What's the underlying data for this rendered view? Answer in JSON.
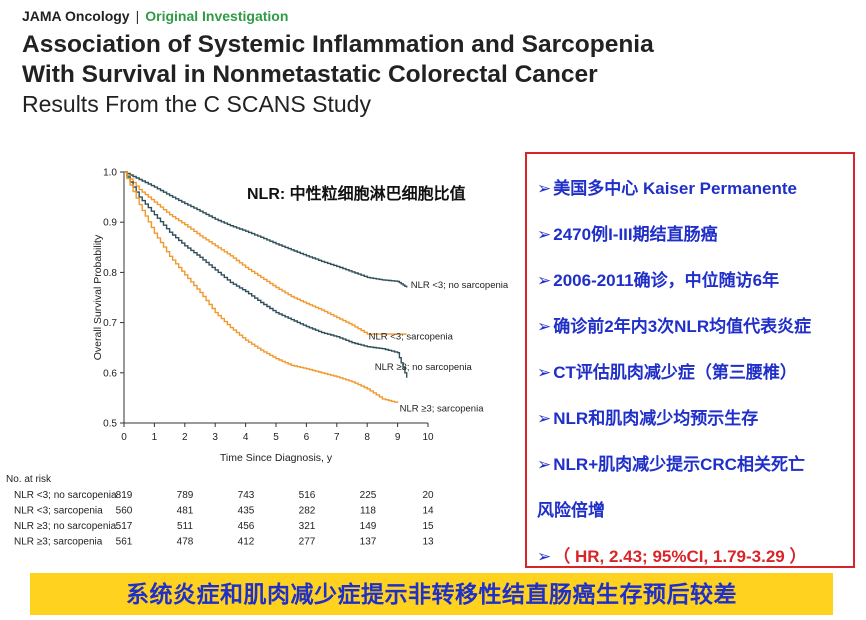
{
  "header": {
    "journal": "JAMA Oncology",
    "separator": "|",
    "section": "Original Investigation",
    "title_line1": "Association of Systemic Inflammation and Sarcopenia",
    "title_line2": "With Survival in Nonmetastatic Colorectal Cancer",
    "subtitle": "Results From the C SCANS Study"
  },
  "nlr_note": "NLR: 中性粒细胞淋巴细胞比值",
  "bullets": [
    "美国多中心 Kaiser Permanente",
    "2470例I-III期结直肠癌",
    "2006-2011确诊，中位随访6年",
    "确诊前2年内3次NLR均值代表炎症",
    "CT评估肌肉减少症（第三腰椎）",
    "NLR和肌肉减少均预示生存",
    "NLR+肌肉减少提示CRC相关死亡",
    "风险倍增"
  ],
  "bullet_arrow": "➢",
  "hr_text": "（ HR, 2.43; 95%CI, 1.79-3.29 ）",
  "banner": "系统炎症和肌肉减少症提示非转移性结直肠癌生存预后较差",
  "colors": {
    "dark_series": "#2f4f5a",
    "orange_series": "#f2992e",
    "bullet_blue": "#1f2fc8",
    "box_red": "#d9252a",
    "banner_yellow": "#ffd21f"
  },
  "chart_data": {
    "type": "line",
    "xlabel": "Time Since Diagnosis, y",
    "ylabel": "Overall Survival Probability",
    "xlim": [
      0,
      10
    ],
    "ylim": [
      0.5,
      1.0
    ],
    "xticks": [
      "0",
      "1",
      "2",
      "3",
      "4",
      "5",
      "6",
      "7",
      "8",
      "9",
      "10"
    ],
    "yticks": [
      "0.5",
      "0.6",
      "0.7",
      "0.8",
      "0.9",
      "1.0"
    ],
    "series": [
      {
        "name": "NLR <3; no sarcopenia",
        "color": "#2f4f5a",
        "x": [
          0,
          0.5,
          1,
          1.5,
          2,
          2.5,
          3,
          3.5,
          4,
          4.5,
          5,
          5.5,
          6,
          6.5,
          7,
          7.5,
          8,
          8.5,
          9,
          9.3
        ],
        "y": [
          1.0,
          0.985,
          0.97,
          0.953,
          0.937,
          0.922,
          0.906,
          0.893,
          0.882,
          0.87,
          0.857,
          0.845,
          0.833,
          0.822,
          0.812,
          0.801,
          0.79,
          0.785,
          0.782,
          0.77
        ]
      },
      {
        "name": "NLR <3; sarcopenia",
        "color": "#f2992e",
        "x": [
          0,
          0.5,
          1,
          1.5,
          2,
          2.5,
          3,
          3.5,
          4,
          4.5,
          5,
          5.5,
          6,
          6.5,
          7,
          7.5,
          8,
          8.5,
          9,
          9.3
        ],
        "y": [
          1.0,
          0.965,
          0.94,
          0.915,
          0.895,
          0.873,
          0.853,
          0.833,
          0.81,
          0.79,
          0.77,
          0.752,
          0.738,
          0.725,
          0.71,
          0.695,
          0.677,
          0.677,
          0.677,
          0.677
        ]
      },
      {
        "name": "NLR ≥3; no sarcopenia",
        "color": "#2f4f5a",
        "x": [
          0,
          0.5,
          1,
          1.5,
          2,
          2.5,
          3,
          3.5,
          4,
          4.5,
          5,
          5.5,
          6,
          6.5,
          7,
          7.5,
          8,
          8.5,
          9,
          9.3
        ],
        "y": [
          1.0,
          0.95,
          0.915,
          0.88,
          0.853,
          0.83,
          0.805,
          0.78,
          0.762,
          0.74,
          0.72,
          0.706,
          0.692,
          0.68,
          0.672,
          0.66,
          0.652,
          0.648,
          0.64,
          0.59
        ]
      },
      {
        "name": "NLR ≥3; sarcopenia",
        "color": "#f2992e",
        "x": [
          0,
          0.5,
          1,
          1.5,
          2,
          2.5,
          3,
          3.5,
          4,
          4.5,
          5,
          5.5,
          6,
          6.5,
          7,
          7.5,
          8,
          8.5,
          9
        ],
        "y": [
          1.0,
          0.935,
          0.878,
          0.832,
          0.795,
          0.76,
          0.72,
          0.69,
          0.665,
          0.645,
          0.628,
          0.615,
          0.608,
          0.6,
          0.592,
          0.582,
          0.568,
          0.548,
          0.54
        ]
      }
    ],
    "risk_table": {
      "title": "No. at risk",
      "rows": [
        {
          "label": "NLR <3; no sarcopenia",
          "values": [
            "819",
            "789",
            "743",
            "516",
            "225",
            "20"
          ]
        },
        {
          "label": "NLR <3; sarcopenia",
          "values": [
            "560",
            "481",
            "435",
            "282",
            "118",
            "14"
          ]
        },
        {
          "label": "NLR ≥3; no sarcopenia",
          "values": [
            "517",
            "511",
            "456",
            "321",
            "149",
            "15"
          ]
        },
        {
          "label": "NLR ≥3; sarcopenia",
          "values": [
            "561",
            "478",
            "412",
            "277",
            "137",
            "13"
          ]
        }
      ],
      "time_points": [
        0,
        2,
        4,
        6,
        8,
        10
      ]
    }
  }
}
